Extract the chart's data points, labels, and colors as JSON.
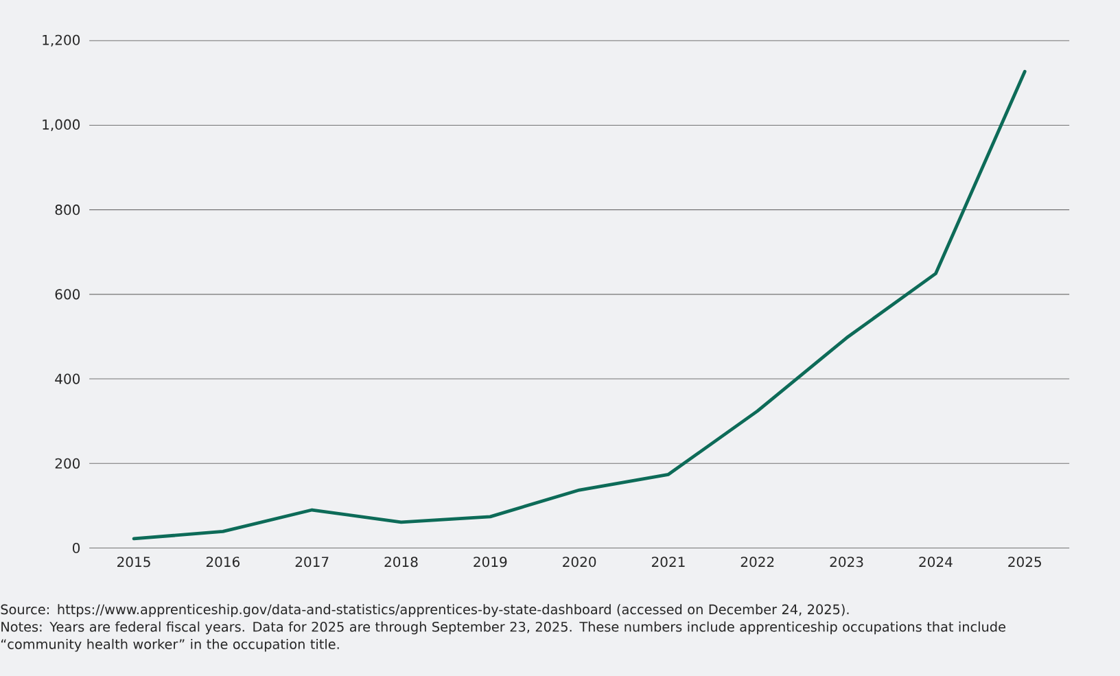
{
  "chart_data": {
    "type": "line",
    "categories": [
      "2015",
      "2016",
      "2017",
      "2018",
      "2019",
      "2020",
      "2021",
      "2022",
      "2023",
      "2024",
      "2025"
    ],
    "values": [
      22,
      39,
      90,
      61,
      74,
      137,
      174,
      324,
      497,
      649,
      1127
    ],
    "color": "#0d6b58",
    "ylim": [
      0,
      1200
    ],
    "yticks": [
      0,
      200,
      400,
      600,
      800,
      {
        "value": 1000,
        "label": "1,000"
      },
      {
        "value": 1200,
        "label": "1,200"
      }
    ],
    "grid": "y",
    "annotations": [
      "Source: https://www.apprenticeship.gov/data-and-statistics/apprentices-by-state-dashboard (accessed on December 24, 2025).",
      "Notes: Years are federal fiscal years. Data for 2025 are through September 23, 2025. These numbers include apprenticeship occupations that include “community health worker” in the occupation title."
    ]
  }
}
